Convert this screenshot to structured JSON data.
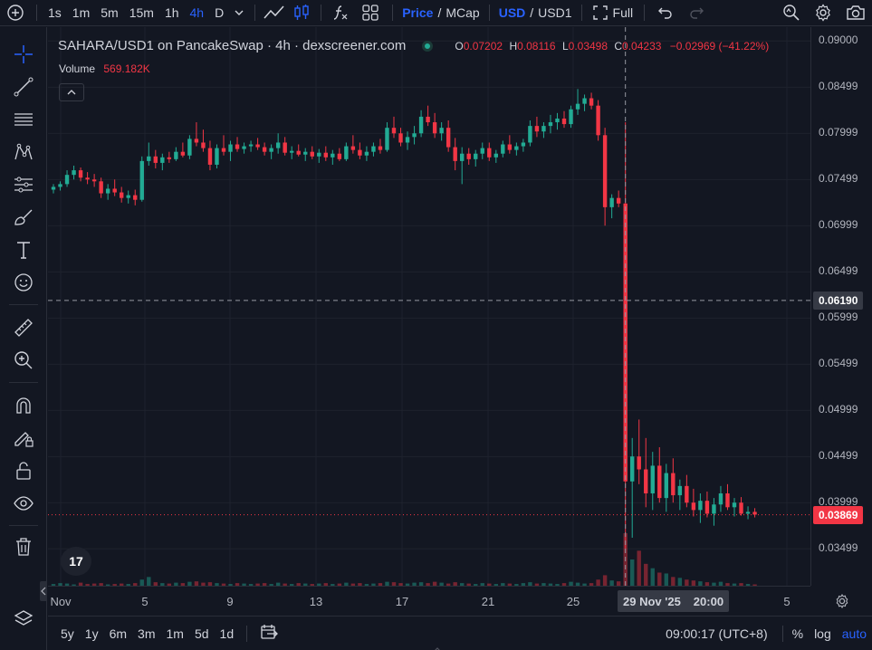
{
  "toolbar": {
    "timeframes": [
      "1s",
      "1m",
      "5m",
      "15m",
      "1h",
      "4h",
      "D"
    ],
    "active_timeframe": "4h",
    "price_label": "Price",
    "mcap_label": "MCap",
    "usd_label": "USD",
    "usd1_label": "USD1",
    "full_label": "Full",
    "slash": "/"
  },
  "legend": {
    "title": "SAHARA/USD1 on PancakeSwap · 4h · dexscreener.com",
    "o_label": "O",
    "o_value": "0.07202",
    "h_label": "H",
    "h_value": "0.08116",
    "l_label": "L",
    "l_value": "0.03498",
    "c_label": "C",
    "c_value": "0.04233",
    "change": "−0.02969 (−41.22%)",
    "volume_label": "Volume",
    "volume_value": "569.182K"
  },
  "price_axis": {
    "labels": [
      "0.09000",
      "0.08499",
      "0.07999",
      "0.07499",
      "0.06999",
      "0.06499",
      "0.05999",
      "0.05499",
      "0.04999",
      "0.04499",
      "0.03999",
      "0.03499"
    ],
    "crosshair_price": "0.06190",
    "last_price": "0.03869"
  },
  "time_axis": {
    "labels": [
      "Nov",
      "5",
      "9",
      "13",
      "17",
      "21",
      "25",
      "5"
    ],
    "crosshair_date": "29 Nov '25",
    "crosshair_time": "20:00"
  },
  "bottom": {
    "ranges": [
      "5y",
      "1y",
      "6m",
      "3m",
      "1m",
      "5d",
      "1d"
    ],
    "clock": "09:00:17 (UTC+8)",
    "percent": "%",
    "log": "log",
    "auto": "auto"
  },
  "logo_text": "17",
  "colors": {
    "up": "#22ab94",
    "down": "#f23645",
    "accent": "#2962ff",
    "background": "#131722"
  },
  "chart_data": {
    "type": "candlestick",
    "ylim": [
      0.031,
      0.0915
    ],
    "candles": [
      [
        0.0739,
        0.0745,
        0.0735,
        0.0742
      ],
      [
        0.0742,
        0.0748,
        0.0738,
        0.0745
      ],
      [
        0.0745,
        0.076,
        0.0742,
        0.0755
      ],
      [
        0.0755,
        0.0765,
        0.075,
        0.076
      ],
      [
        0.076,
        0.0763,
        0.0748,
        0.0752
      ],
      [
        0.0752,
        0.0758,
        0.0745,
        0.075
      ],
      [
        0.075,
        0.0756,
        0.0742,
        0.0748
      ],
      [
        0.0748,
        0.0752,
        0.073,
        0.0735
      ],
      [
        0.0735,
        0.0745,
        0.0728,
        0.074
      ],
      [
        0.074,
        0.075,
        0.0732,
        0.0736
      ],
      [
        0.0736,
        0.0742,
        0.0725,
        0.073
      ],
      [
        0.073,
        0.0738,
        0.0724,
        0.0733
      ],
      [
        0.0733,
        0.0739,
        0.0722,
        0.0728
      ],
      [
        0.0728,
        0.0775,
        0.0726,
        0.077
      ],
      [
        0.077,
        0.079,
        0.0765,
        0.0775
      ],
      [
        0.0775,
        0.0782,
        0.0762,
        0.0768
      ],
      [
        0.0768,
        0.0778,
        0.076,
        0.0774
      ],
      [
        0.0774,
        0.078,
        0.0768,
        0.0772
      ],
      [
        0.0772,
        0.0785,
        0.077,
        0.078
      ],
      [
        0.078,
        0.079,
        0.0774,
        0.0776
      ],
      [
        0.0776,
        0.0798,
        0.0772,
        0.0794
      ],
      [
        0.0794,
        0.0812,
        0.0786,
        0.079
      ],
      [
        0.079,
        0.0804,
        0.078,
        0.0784
      ],
      [
        0.0784,
        0.0792,
        0.076,
        0.0766
      ],
      [
        0.0766,
        0.0788,
        0.0762,
        0.0784
      ],
      [
        0.0784,
        0.0798,
        0.0776,
        0.078
      ],
      [
        0.078,
        0.0792,
        0.077,
        0.0788
      ],
      [
        0.0788,
        0.0796,
        0.078,
        0.0783
      ],
      [
        0.0783,
        0.079,
        0.0778,
        0.0786
      ],
      [
        0.0786,
        0.0792,
        0.078,
        0.0788
      ],
      [
        0.0788,
        0.0795,
        0.0782,
        0.0785
      ],
      [
        0.0785,
        0.079,
        0.0776,
        0.078
      ],
      [
        0.078,
        0.0788,
        0.0772,
        0.0784
      ],
      [
        0.0784,
        0.08,
        0.0778,
        0.079
      ],
      [
        0.079,
        0.0796,
        0.0776,
        0.0779
      ],
      [
        0.0779,
        0.0786,
        0.0772,
        0.0781
      ],
      [
        0.0781,
        0.0788,
        0.0775,
        0.0777
      ],
      [
        0.0777,
        0.0784,
        0.077,
        0.078
      ],
      [
        0.078,
        0.0786,
        0.0772,
        0.0775
      ],
      [
        0.0775,
        0.0783,
        0.0768,
        0.0779
      ],
      [
        0.0779,
        0.0786,
        0.077,
        0.0774
      ],
      [
        0.0774,
        0.0782,
        0.0766,
        0.0778
      ],
      [
        0.0778,
        0.0784,
        0.077,
        0.0772
      ],
      [
        0.0772,
        0.079,
        0.077,
        0.0786
      ],
      [
        0.0786,
        0.0798,
        0.0778,
        0.0782
      ],
      [
        0.0782,
        0.079,
        0.0772,
        0.0776
      ],
      [
        0.0776,
        0.0786,
        0.077,
        0.078
      ],
      [
        0.078,
        0.079,
        0.0775,
        0.0786
      ],
      [
        0.0786,
        0.0794,
        0.0778,
        0.0782
      ],
      [
        0.0782,
        0.0812,
        0.078,
        0.0806
      ],
      [
        0.0806,
        0.0818,
        0.0795,
        0.08
      ],
      [
        0.08,
        0.0806,
        0.0786,
        0.079
      ],
      [
        0.079,
        0.0802,
        0.0782,
        0.0796
      ],
      [
        0.0796,
        0.0808,
        0.0788,
        0.08
      ],
      [
        0.08,
        0.0825,
        0.0796,
        0.0818
      ],
      [
        0.0818,
        0.083,
        0.0808,
        0.0812
      ],
      [
        0.0812,
        0.0822,
        0.0795,
        0.08
      ],
      [
        0.08,
        0.0812,
        0.0792,
        0.0806
      ],
      [
        0.0806,
        0.0814,
        0.078,
        0.0785
      ],
      [
        0.0785,
        0.0795,
        0.076,
        0.077
      ],
      [
        0.077,
        0.0785,
        0.0745,
        0.0778
      ],
      [
        0.0778,
        0.0784,
        0.0766,
        0.0772
      ],
      [
        0.0772,
        0.0782,
        0.0764,
        0.0778
      ],
      [
        0.0778,
        0.079,
        0.0772,
        0.0784
      ],
      [
        0.0784,
        0.079,
        0.077,
        0.0774
      ],
      [
        0.0774,
        0.0782,
        0.0768,
        0.0778
      ],
      [
        0.0778,
        0.0792,
        0.0774,
        0.0788
      ],
      [
        0.0788,
        0.0798,
        0.0778,
        0.0782
      ],
      [
        0.0782,
        0.079,
        0.0776,
        0.0786
      ],
      [
        0.0786,
        0.0794,
        0.078,
        0.079
      ],
      [
        0.079,
        0.0814,
        0.0786,
        0.0808
      ],
      [
        0.0808,
        0.0818,
        0.0796,
        0.0802
      ],
      [
        0.0802,
        0.0812,
        0.0795,
        0.0808
      ],
      [
        0.0808,
        0.082,
        0.08,
        0.0812
      ],
      [
        0.0812,
        0.0822,
        0.0804,
        0.0816
      ],
      [
        0.0816,
        0.0824,
        0.0806,
        0.081
      ],
      [
        0.081,
        0.083,
        0.0806,
        0.0826
      ],
      [
        0.0826,
        0.0848,
        0.082,
        0.0832
      ],
      [
        0.0832,
        0.0842,
        0.0824,
        0.0838
      ],
      [
        0.0838,
        0.0844,
        0.0826,
        0.083
      ],
      [
        0.083,
        0.0836,
        0.0792,
        0.0798
      ],
      [
        0.0798,
        0.0806,
        0.07,
        0.072
      ],
      [
        0.072,
        0.0734,
        0.0708,
        0.073
      ],
      [
        0.073,
        0.0738,
        0.072,
        0.0724
      ],
      [
        0.0724,
        0.0812,
        0.035,
        0.0423
      ],
      [
        0.0423,
        0.047,
        0.0362,
        0.045
      ],
      [
        0.045,
        0.049,
        0.042,
        0.0436
      ],
      [
        0.0436,
        0.047,
        0.0395,
        0.041
      ],
      [
        0.041,
        0.0455,
        0.0392,
        0.044
      ],
      [
        0.044,
        0.046,
        0.04,
        0.0405
      ],
      [
        0.0405,
        0.0442,
        0.039,
        0.0432
      ],
      [
        0.0432,
        0.0448,
        0.04,
        0.0408
      ],
      [
        0.0408,
        0.0425,
        0.0392,
        0.0418
      ],
      [
        0.0418,
        0.043,
        0.0395,
        0.04
      ],
      [
        0.04,
        0.0415,
        0.0385,
        0.0392
      ],
      [
        0.0392,
        0.041,
        0.0378,
        0.0402
      ],
      [
        0.0402,
        0.0412,
        0.0384,
        0.0388
      ],
      [
        0.0388,
        0.0405,
        0.0375,
        0.0398
      ],
      [
        0.0398,
        0.0418,
        0.039,
        0.041
      ],
      [
        0.041,
        0.042,
        0.0392,
        0.0395
      ],
      [
        0.0395,
        0.0405,
        0.0385,
        0.04
      ],
      [
        0.04,
        0.0406,
        0.0386,
        0.0388
      ],
      [
        0.0388,
        0.0396,
        0.0382,
        0.039
      ],
      [
        0.039,
        0.0394,
        0.0384,
        0.0387
      ]
    ],
    "volumes": [
      4,
      6,
      5,
      3,
      7,
      4,
      5,
      6,
      3,
      4,
      5,
      4,
      6,
      14,
      20,
      8,
      6,
      5,
      7,
      6,
      9,
      10,
      7,
      8,
      6,
      5,
      4,
      6,
      5,
      4,
      5,
      6,
      4,
      7,
      5,
      4,
      6,
      5,
      4,
      5,
      6,
      4,
      5,
      7,
      5,
      6,
      4,
      5,
      6,
      9,
      8,
      6,
      5,
      7,
      8,
      6,
      9,
      7,
      5,
      8,
      6,
      5,
      4,
      6,
      5,
      4,
      6,
      5,
      4,
      6,
      8,
      5,
      6,
      5,
      4,
      6,
      9,
      7,
      5,
      6,
      14,
      24,
      12,
      10,
      120,
      60,
      80,
      50,
      40,
      30,
      28,
      20,
      18,
      14,
      12,
      10,
      8,
      7,
      9,
      6,
      5,
      6,
      4,
      3
    ],
    "crosshair_index": 83
  }
}
